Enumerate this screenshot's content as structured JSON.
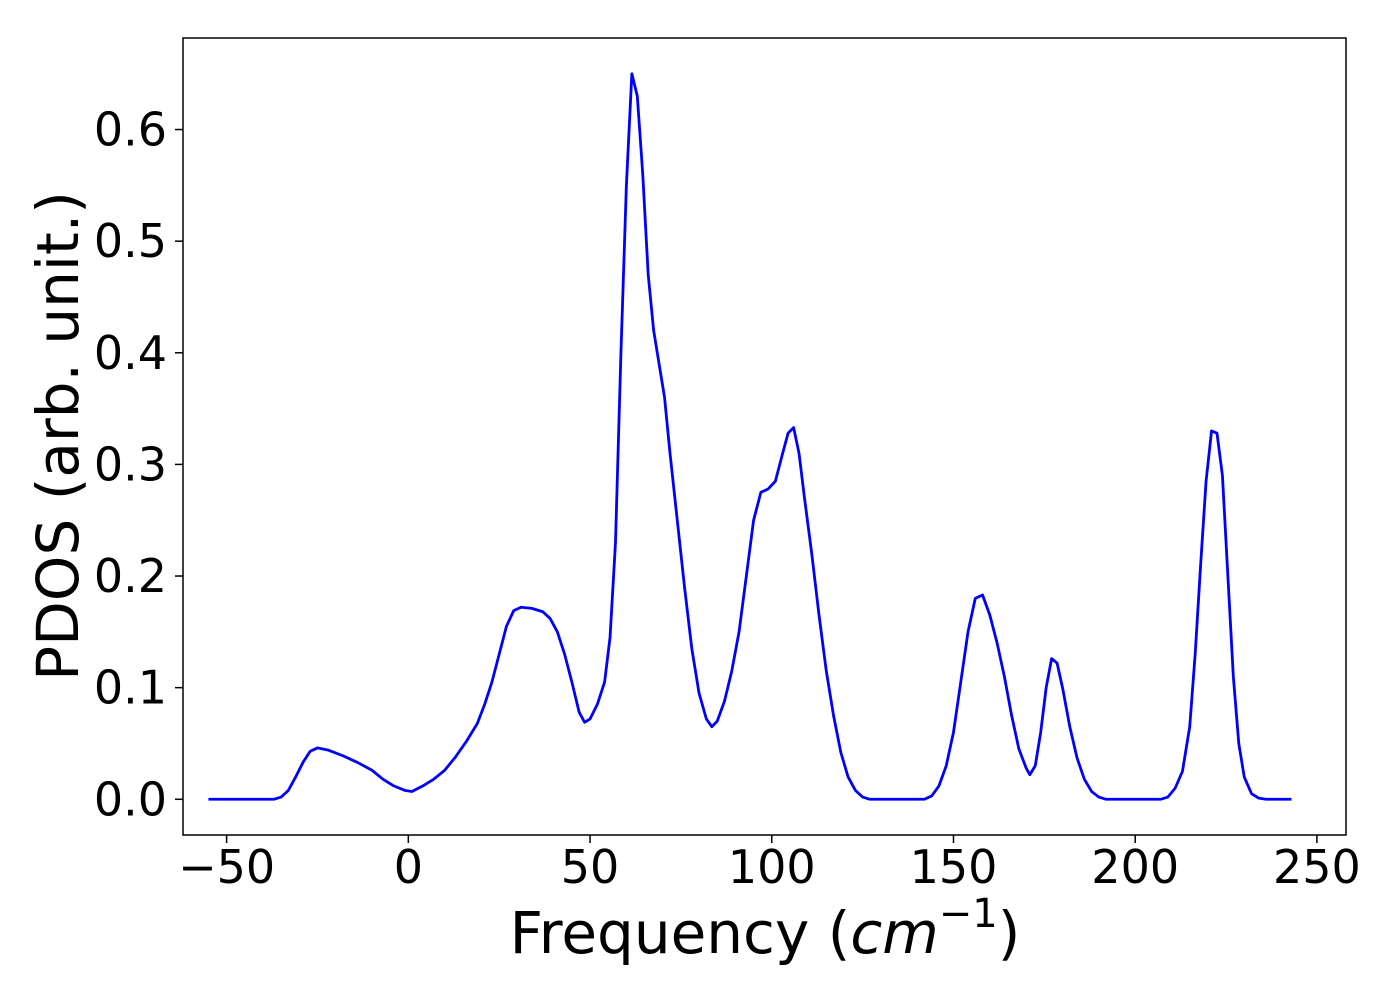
{
  "chart_data": {
    "type": "line",
    "title": "",
    "xlabel_text": "Frequency (",
    "xlabel_math_base": "cm",
    "xlabel_math_exp": "−1",
    "xlabel_close": ")",
    "ylabel": "PDOS (arb. unit.)",
    "xlim": [
      -62,
      258
    ],
    "ylim": [
      -0.032,
      0.682
    ],
    "grid": false,
    "line_color": "#0000ff",
    "x_ticks": [
      -50,
      0,
      50,
      100,
      150,
      200,
      250
    ],
    "x_tick_labels": [
      "−50",
      "0",
      "50",
      "100",
      "150",
      "200",
      "250"
    ],
    "y_ticks": [
      0.0,
      0.1,
      0.2,
      0.3,
      0.4,
      0.5,
      0.6
    ],
    "y_tick_labels": [
      "0.0",
      "0.1",
      "0.2",
      "0.3",
      "0.4",
      "0.5",
      "0.6"
    ],
    "series": [
      {
        "points": [
          [
            -55,
            0.0
          ],
          [
            -37,
            0.0
          ],
          [
            -35,
            0.002
          ],
          [
            -33,
            0.008
          ],
          [
            -31,
            0.02
          ],
          [
            -29,
            0.033
          ],
          [
            -27,
            0.043
          ],
          [
            -25,
            0.046
          ],
          [
            -22,
            0.044
          ],
          [
            -18,
            0.039
          ],
          [
            -14,
            0.033
          ],
          [
            -10,
            0.026
          ],
          [
            -7,
            0.018
          ],
          [
            -4,
            0.012
          ],
          [
            -1,
            0.008
          ],
          [
            1,
            0.007
          ],
          [
            4,
            0.012
          ],
          [
            7,
            0.018
          ],
          [
            10,
            0.026
          ],
          [
            13,
            0.038
          ],
          [
            16,
            0.052
          ],
          [
            19,
            0.068
          ],
          [
            21,
            0.085
          ],
          [
            23,
            0.105
          ],
          [
            25,
            0.13
          ],
          [
            27,
            0.155
          ],
          [
            29,
            0.169
          ],
          [
            31,
            0.172
          ],
          [
            34,
            0.171
          ],
          [
            37,
            0.168
          ],
          [
            39,
            0.162
          ],
          [
            41,
            0.15
          ],
          [
            43,
            0.13
          ],
          [
            45,
            0.105
          ],
          [
            47,
            0.078
          ],
          [
            48.5,
            0.069
          ],
          [
            50,
            0.072
          ],
          [
            52,
            0.085
          ],
          [
            54,
            0.105
          ],
          [
            55.5,
            0.145
          ],
          [
            57,
            0.23
          ],
          [
            58.5,
            0.4
          ],
          [
            60,
            0.55
          ],
          [
            61.5,
            0.65
          ],
          [
            63,
            0.63
          ],
          [
            64.5,
            0.56
          ],
          [
            66,
            0.47
          ],
          [
            67.5,
            0.42
          ],
          [
            69,
            0.39
          ],
          [
            70.5,
            0.36
          ],
          [
            72,
            0.31
          ],
          [
            74,
            0.25
          ],
          [
            76,
            0.19
          ],
          [
            78,
            0.135
          ],
          [
            80,
            0.095
          ],
          [
            82,
            0.072
          ],
          [
            83.5,
            0.065
          ],
          [
            85,
            0.07
          ],
          [
            87,
            0.088
          ],
          [
            89,
            0.115
          ],
          [
            91,
            0.15
          ],
          [
            93,
            0.2
          ],
          [
            95,
            0.25
          ],
          [
            97,
            0.275
          ],
          [
            99,
            0.278
          ],
          [
            101,
            0.285
          ],
          [
            103,
            0.31
          ],
          [
            104.5,
            0.328
          ],
          [
            106,
            0.333
          ],
          [
            107.5,
            0.31
          ],
          [
            109,
            0.27
          ],
          [
            111,
            0.22
          ],
          [
            113,
            0.165
          ],
          [
            115,
            0.115
          ],
          [
            117,
            0.075
          ],
          [
            119,
            0.042
          ],
          [
            121,
            0.02
          ],
          [
            123,
            0.008
          ],
          [
            125,
            0.002
          ],
          [
            127,
            0.0
          ],
          [
            140,
            0.0
          ],
          [
            142,
            0.0
          ],
          [
            144,
            0.003
          ],
          [
            146,
            0.012
          ],
          [
            148,
            0.03
          ],
          [
            150,
            0.06
          ],
          [
            152,
            0.105
          ],
          [
            154,
            0.15
          ],
          [
            156,
            0.18
          ],
          [
            158,
            0.183
          ],
          [
            160,
            0.165
          ],
          [
            162,
            0.14
          ],
          [
            164,
            0.11
          ],
          [
            166,
            0.075
          ],
          [
            168,
            0.045
          ],
          [
            170,
            0.028
          ],
          [
            171,
            0.022
          ],
          [
            172.5,
            0.03
          ],
          [
            174,
            0.06
          ],
          [
            175.5,
            0.1
          ],
          [
            177,
            0.126
          ],
          [
            178.5,
            0.122
          ],
          [
            180,
            0.1
          ],
          [
            182,
            0.065
          ],
          [
            184,
            0.037
          ],
          [
            186,
            0.018
          ],
          [
            188,
            0.007
          ],
          [
            190,
            0.002
          ],
          [
            192,
            0.0
          ],
          [
            207,
            0.0
          ],
          [
            209,
            0.002
          ],
          [
            211,
            0.01
          ],
          [
            213,
            0.025
          ],
          [
            215,
            0.065
          ],
          [
            216.5,
            0.13
          ],
          [
            218,
            0.21
          ],
          [
            219.5,
            0.285
          ],
          [
            221,
            0.33
          ],
          [
            222.5,
            0.328
          ],
          [
            224,
            0.29
          ],
          [
            225.5,
            0.2
          ],
          [
            227,
            0.11
          ],
          [
            228.5,
            0.05
          ],
          [
            230,
            0.02
          ],
          [
            232,
            0.005
          ],
          [
            234,
            0.001
          ],
          [
            236,
            0.0
          ],
          [
            243,
            0.0
          ]
        ]
      }
    ]
  }
}
